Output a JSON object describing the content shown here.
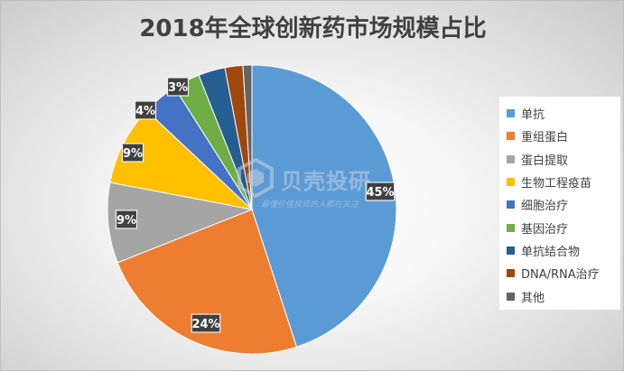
{
  "chart_data": {
    "type": "pie",
    "title": "2018年全球创新药市场规模占比",
    "legend_position": "right",
    "categories": [
      "单抗",
      "重组蛋白",
      "蛋白提取",
      "生物工程疫苗",
      "细胞治疗",
      "基因治疗",
      "单抗结合物",
      "DNA/RNA治疗",
      "其他"
    ],
    "values": [
      45,
      24,
      9,
      9,
      4,
      3,
      3,
      2,
      1
    ],
    "colors": [
      "#5b9bd5",
      "#ed7d31",
      "#a5a5a5",
      "#ffc000",
      "#4472c4",
      "#70ad47",
      "#255e91",
      "#9e480e",
      "#636363"
    ],
    "data_labels": [
      "45%",
      "24%",
      "9%",
      "9%",
      "4%",
      "3%",
      "",
      "",
      ""
    ]
  },
  "watermark": {
    "name": "贝壳投研",
    "slogan": "最懂价值投资的人都在关注"
  }
}
